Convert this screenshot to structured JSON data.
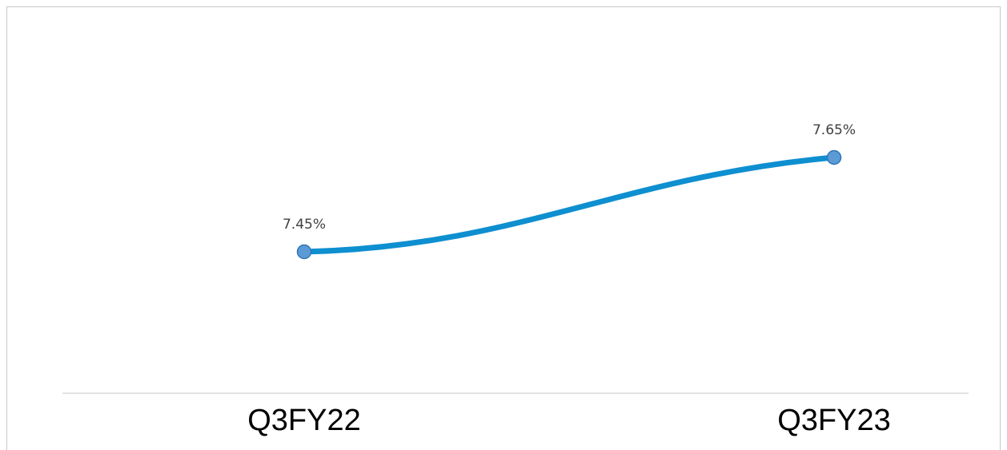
{
  "chart_data": {
    "type": "line",
    "categories": [
      "Q3FY22",
      "Q3FY23"
    ],
    "values": [
      7.45,
      7.65
    ],
    "value_labels": [
      "7.45%",
      "7.65%"
    ],
    "color": "#0e8fd0"
  }
}
